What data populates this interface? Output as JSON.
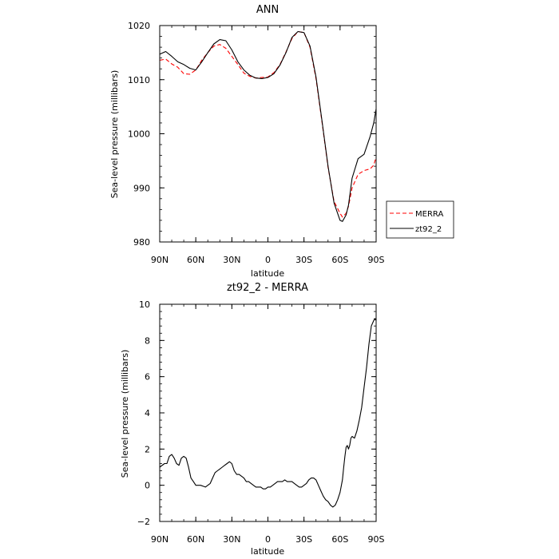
{
  "chart_data": [
    {
      "type": "line",
      "title": "ANN",
      "xlabel": "latitude",
      "ylabel": "Sea-level pressure (millibars)",
      "xlim": [
        90,
        -90
      ],
      "ylim": [
        980,
        1020
      ],
      "x_tick_values": [
        90,
        60,
        30,
        0,
        -30,
        -60,
        -90
      ],
      "x_tick_labels": [
        "90N",
        "60N",
        "30N",
        "0",
        "30S",
        "60S",
        "90S"
      ],
      "y_tick_values": [
        980,
        990,
        1000,
        1010,
        1020
      ],
      "y_tick_labels": [
        "980",
        "990",
        "1000",
        "1010",
        "1020"
      ],
      "grid": false,
      "legend_position": "right",
      "series": [
        {
          "name": "MERRA",
          "color": "#ff0000",
          "style": "dashed",
          "x": [
            90,
            85,
            80,
            75,
            70,
            65,
            60,
            55,
            50,
            45,
            40,
            35,
            30,
            25,
            20,
            15,
            10,
            5,
            0,
            -5,
            -10,
            -15,
            -20,
            -25,
            -30,
            -35,
            -40,
            -45,
            -50,
            -55,
            -60,
            -62,
            -65,
            -67,
            -70,
            -75,
            -80,
            -85,
            -88,
            -90
          ],
          "y": [
            1013.6,
            1013.8,
            1012.9,
            1012.3,
            1011.1,
            1011.0,
            1011.8,
            1013.6,
            1015.0,
            1016.2,
            1016.5,
            1015.8,
            1014.3,
            1012.8,
            1011.2,
            1010.6,
            1010.3,
            1010.4,
            1010.5,
            1011.3,
            1012.8,
            1015.1,
            1017.6,
            1018.9,
            1018.7,
            1016.0,
            1010.2,
            1002.1,
            993.8,
            987.5,
            985.3,
            984.6,
            985.3,
            986.6,
            990.0,
            992.5,
            993.2,
            993.5,
            994.2,
            995.7
          ]
        },
        {
          "name": "zt92_2",
          "color": "#000000",
          "style": "solid",
          "x": [
            90,
            85,
            80,
            75,
            70,
            65,
            60,
            55,
            50,
            45,
            40,
            35,
            30,
            25,
            20,
            15,
            10,
            5,
            0,
            -5,
            -10,
            -15,
            -20,
            -25,
            -30,
            -35,
            -40,
            -45,
            -50,
            -55,
            -60,
            -62,
            -65,
            -67,
            -70,
            -75,
            -80,
            -85,
            -88,
            -90
          ],
          "y": [
            1014.7,
            1015.2,
            1014.3,
            1013.3,
            1012.8,
            1012.1,
            1011.8,
            1013.3,
            1015.0,
            1016.6,
            1017.4,
            1017.2,
            1015.5,
            1013.3,
            1011.8,
            1010.8,
            1010.3,
            1010.2,
            1010.4,
            1011.1,
            1012.7,
            1015.0,
            1017.8,
            1018.9,
            1018.7,
            1016.2,
            1010.5,
            1002.3,
            994.0,
            987.2,
            984.0,
            983.8,
            985.0,
            986.8,
            991.8,
            995.4,
            996.2,
            999.5,
            1002.0,
            1004.6
          ]
        }
      ]
    },
    {
      "type": "line",
      "title": "zt92_2 - MERRA",
      "xlabel": "latitude",
      "ylabel": "Sea-level pressure (millibars)",
      "xlim": [
        90,
        -90
      ],
      "ylim": [
        -2,
        10
      ],
      "x_tick_values": [
        90,
        60,
        30,
        0,
        -30,
        -60,
        -90
      ],
      "x_tick_labels": [
        "90N",
        "60N",
        "30N",
        "0",
        "30S",
        "60S",
        "90S"
      ],
      "y_tick_values": [
        -2,
        0,
        2,
        4,
        6,
        8,
        10
      ],
      "y_tick_labels": [
        "−2",
        "0",
        "2",
        "4",
        "6",
        "8",
        "10"
      ],
      "grid": false,
      "series": [
        {
          "color": "#000000",
          "style": "solid",
          "x": [
            90,
            86,
            84,
            82,
            80,
            78,
            76,
            74,
            72,
            70,
            68,
            66,
            64,
            62,
            60,
            58,
            56,
            52,
            48,
            46,
            44,
            42,
            40,
            38,
            36,
            34,
            32,
            30,
            28,
            26,
            24,
            22,
            20,
            18,
            16,
            14,
            12,
            10,
            8,
            6,
            4,
            2,
            0,
            -2,
            -4,
            -6,
            -8,
            -10,
            -12,
            -14,
            -16,
            -18,
            -20,
            -22,
            -24,
            -26,
            -28,
            -30,
            -32,
            -34,
            -36,
            -38,
            -40,
            -42,
            -44,
            -46,
            -48,
            -50,
            -52,
            -54,
            -56,
            -58,
            -60,
            -62,
            -63,
            -64,
            -65,
            -66,
            -67,
            -68,
            -69,
            -70,
            -72,
            -74,
            -76,
            -78,
            -80,
            -82,
            -84,
            -86,
            -88,
            -89,
            -90
          ],
          "y": [
            1.0,
            1.2,
            1.2,
            1.6,
            1.7,
            1.5,
            1.2,
            1.1,
            1.5,
            1.6,
            1.5,
            1.0,
            0.4,
            0.2,
            0.0,
            0.0,
            0.0,
            -0.1,
            0.1,
            0.4,
            0.7,
            0.8,
            0.9,
            1.0,
            1.1,
            1.2,
            1.3,
            1.2,
            0.8,
            0.6,
            0.6,
            0.5,
            0.4,
            0.2,
            0.2,
            0.1,
            0.0,
            -0.1,
            -0.1,
            -0.1,
            -0.2,
            -0.2,
            -0.1,
            -0.1,
            0.0,
            0.1,
            0.2,
            0.2,
            0.2,
            0.3,
            0.2,
            0.2,
            0.2,
            0.1,
            0.0,
            -0.1,
            -0.1,
            0.0,
            0.1,
            0.3,
            0.4,
            0.4,
            0.3,
            0.0,
            -0.3,
            -0.6,
            -0.8,
            -0.9,
            -1.1,
            -1.2,
            -1.1,
            -0.8,
            -0.4,
            0.3,
            1.0,
            1.6,
            2.1,
            2.2,
            2.0,
            2.2,
            2.6,
            2.7,
            2.6,
            3.0,
            3.6,
            4.3,
            5.4,
            6.5,
            7.8,
            8.8,
            9.1,
            9.2,
            9.1
          ]
        }
      ]
    }
  ]
}
